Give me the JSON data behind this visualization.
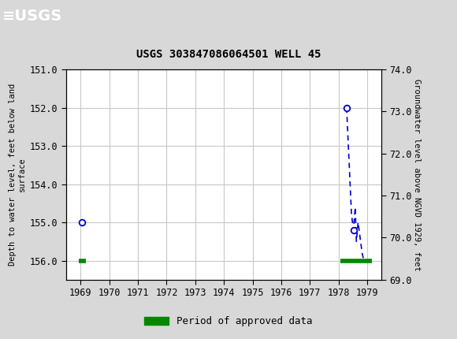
{
  "title": "USGS 303847086064501 WELL 45",
  "header_bg_color": "#1a6b3c",
  "plot_bg_color": "#ffffff",
  "fig_bg_color": "#d8d8d8",
  "left_ylabel": "Depth to water level, feet below land\nsurface",
  "right_ylabel": "Groundwater level above NGVD 1929, feet",
  "xlim": [
    1968.5,
    1979.5
  ],
  "ylim_left_top": 151.0,
  "ylim_left_bottom": 156.5,
  "ylim_right_top": 74.0,
  "ylim_right_bottom": 69.0,
  "xticks": [
    1969,
    1970,
    1971,
    1972,
    1973,
    1974,
    1975,
    1976,
    1977,
    1978,
    1979
  ],
  "yticks_left": [
    151.0,
    152.0,
    153.0,
    154.0,
    155.0,
    156.0
  ],
  "yticks_right": [
    74.0,
    73.0,
    72.0,
    71.0,
    70.0,
    69.0
  ],
  "grid_color": "#c8c8c8",
  "blue_line_color": "#0000cc",
  "green_bar_color": "#008800",
  "approved_segments": [
    {
      "x": [
        1968.95,
        1969.18
      ],
      "y": [
        156.0,
        156.0
      ]
    },
    {
      "x": [
        1978.05,
        1979.15
      ],
      "y": [
        156.0,
        156.0
      ]
    }
  ],
  "blue_dashed_x": [
    1978.28,
    1978.28,
    1978.45,
    1978.52,
    1978.58,
    1978.62,
    1978.68,
    1978.75,
    1978.82,
    1978.88
  ],
  "blue_dashed_y": [
    152.0,
    152.0,
    154.8,
    155.2,
    154.6,
    155.5,
    155.0,
    155.4,
    155.8,
    156.0
  ],
  "circle_points_x": [
    1969.05,
    1978.28,
    1978.52
  ],
  "circle_points_y": [
    155.0,
    152.0,
    155.2
  ],
  "legend_label": "Period of approved data"
}
